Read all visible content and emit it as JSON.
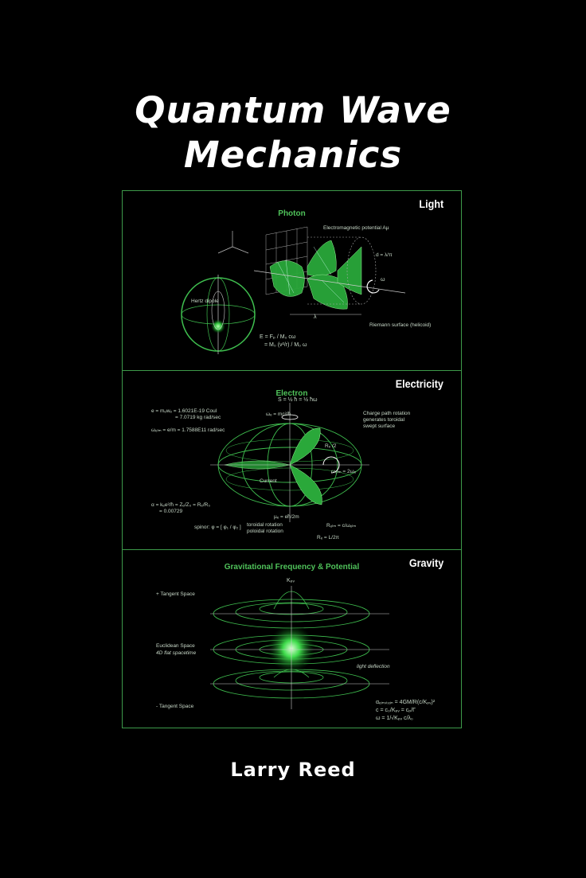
{
  "cover": {
    "title_line1": "Quantum Wave",
    "title_line2": "Mechanics",
    "author": "Larry Reed"
  },
  "panels": {
    "light": {
      "label": "Light",
      "subtitle": "Photon",
      "annotations": [
        "Electromagnetic potential Aµ",
        "d = λ/π",
        "Riemann surface (helicoid)",
        "Hertz dipole",
        "E = Fₚ / M₀ cω",
        "= M₀ (v²/r) / M₀ ω",
        "λ",
        "ω"
      ]
    },
    "electricity": {
      "label": "Electricity",
      "subtitle": "Electron",
      "annotations": [
        "S = ½ ħ = ½ ħω",
        "e = mₑwₑ = 1.6021E-19 Coul",
        "= 7.0719 kg rad/sec",
        "ωₑₗₘ = e/m = 1.7588E11 rad/sec",
        "ωₑ = mc²/ħ",
        "Charge path rotation generates toroidal swept surface",
        "Rₑ /2",
        "ωₑₗₘ = 2ωₑ",
        "Current",
        "α = kₑe²/ħ = Zₑ/Z₀ = Rₑ/R₀",
        "= 0.00729",
        "spinor: φ = [ φ₁ / φ₂ ]",
        "toroidal rotation",
        "poloidal rotation",
        "µₑ = eħ/2m",
        "Rₑₗₘ = c/ωₑₗₘ",
        "Rₑ = L/2π"
      ]
    },
    "gravity": {
      "label": "Gravity",
      "subtitle": "Gravitational Frequency & Potential",
      "annotations": [
        "+ Tangent Space",
        "Euclidean Space",
        "4D flat spacetime",
        "- Tangent Space",
        "Kₚᵥ",
        "light deflection",
        "αₑᵢₙₛₜₑᵢₙ = 4GM/R(c/Kₚᵥ)²",
        "c = c₀/Kₚᵥ = cₚ/Γ",
        "ω = 1/√Kₚᵥ c/λ₀"
      ]
    }
  },
  "colors": {
    "background": "#000000",
    "accent": "#3fbf4f",
    "frame": "#3d9a4a"
  }
}
